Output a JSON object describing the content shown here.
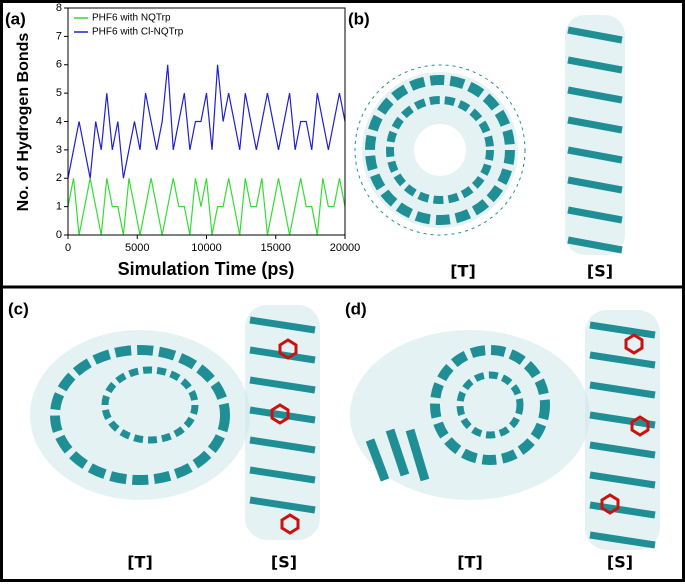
{
  "panels": {
    "a": "(a)",
    "b": "(b)",
    "c": "(c)",
    "d": "(d)",
    "b_top": "[T]",
    "b_side": "[S]",
    "c_top": "[T]",
    "c_side": "[S]",
    "d_top": "[T]",
    "d_side": "[S]"
  },
  "chart_data": {
    "type": "line",
    "y_label": "No. of Hydrogen Bonds",
    "x_label": "Simulation Time (ps)",
    "x": [
      0,
      400,
      800,
      1200,
      1600,
      2000,
      2400,
      2800,
      3200,
      3600,
      4000,
      4400,
      4800,
      5200,
      5600,
      6000,
      6400,
      6800,
      7200,
      7600,
      8000,
      8400,
      8800,
      9200,
      9600,
      10000,
      10400,
      10800,
      11200,
      11600,
      12000,
      12400,
      12800,
      13200,
      13600,
      14000,
      14400,
      14800,
      15200,
      15600,
      16000,
      16400,
      16800,
      17200,
      17600,
      18000,
      18400,
      18800,
      19200,
      19600,
      20000
    ],
    "series": [
      {
        "name": "PHF6 with NQTrp",
        "color": "#33dd33",
        "values": [
          1,
          2,
          0,
          1,
          2,
          1,
          0,
          2,
          1,
          1,
          0,
          2,
          1,
          0,
          1,
          2,
          1,
          0,
          1,
          2,
          1,
          1,
          0,
          2,
          1,
          2,
          0,
          1,
          1,
          2,
          1,
          0,
          2,
          1,
          1,
          2,
          0,
          1,
          2,
          1,
          0,
          1,
          2,
          1,
          1,
          0,
          2,
          1,
          1,
          2,
          1
        ]
      },
      {
        "name": "PHF6 with Cl-NQTrp",
        "color": "#2020cc",
        "values": [
          2,
          3,
          4,
          3,
          2,
          4,
          3,
          5,
          3,
          4,
          2,
          3,
          4,
          3,
          5,
          4,
          3,
          4,
          6,
          3,
          4,
          5,
          3,
          4,
          4,
          5,
          3,
          6,
          4,
          5,
          4,
          3,
          5,
          4,
          3,
          4,
          5,
          4,
          3,
          4,
          5,
          3,
          4,
          4,
          3,
          5,
          4,
          3,
          4,
          5,
          4
        ]
      }
    ],
    "xlim": [
      0,
      20000
    ],
    "xticks": [
      0,
      5000,
      10000,
      15000,
      20000
    ],
    "ylim": [
      0,
      8
    ],
    "yticks": [
      0,
      1,
      2,
      3,
      4,
      5,
      6,
      7,
      8
    ],
    "legend": "top-left"
  }
}
